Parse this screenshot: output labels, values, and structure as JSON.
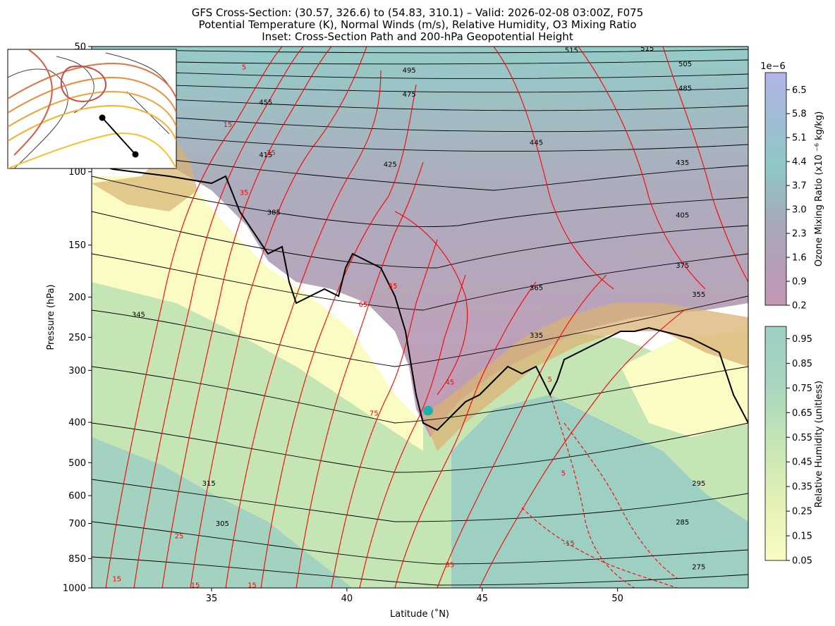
{
  "title_lines": [
    "GFS Cross-Section: (30.57, 326.6) to (54.83, 310.1) – Valid: 2026-02-08 03:00Z, F075",
    "Potential Temperature (K), Normal Winds (m/s), Relative Humidity, O3 Mixing Ratio",
    "Inset: Cross-Section Path and 200-hPa Geopotential Height"
  ],
  "chart_data": {
    "type": "contour-cross-section",
    "xlabel": "Latitude (˚N)",
    "ylabel": "Pressure (hPa)",
    "xlim": [
      30.57,
      54.83
    ],
    "ylim": [
      1000,
      50
    ],
    "y_scale": "log",
    "x_ticks": [
      35,
      40,
      45,
      50
    ],
    "y_ticks": [
      1000,
      850,
      700,
      600,
      500,
      400,
      300,
      250,
      200,
      150,
      100,
      50
    ],
    "theta_contour_labels": [
      {
        "text": "515",
        "lat": 48.3,
        "p": 51
      },
      {
        "text": "515",
        "lat": 51.1,
        "p": 50.5
      },
      {
        "text": "505",
        "lat": 52.5,
        "p": 55
      },
      {
        "text": "495",
        "lat": 42.3,
        "p": 57
      },
      {
        "text": "485",
        "lat": 52.5,
        "p": 63
      },
      {
        "text": "475",
        "lat": 42.3,
        "p": 65
      },
      {
        "text": "455",
        "lat": 37.0,
        "p": 68
      },
      {
        "text": "445",
        "lat": 47.0,
        "p": 85
      },
      {
        "text": "435",
        "lat": 52.4,
        "p": 95
      },
      {
        "text": "425",
        "lat": 41.6,
        "p": 96
      },
      {
        "text": "415",
        "lat": 37.0,
        "p": 91
      },
      {
        "text": "405",
        "lat": 52.4,
        "p": 127
      },
      {
        "text": "385",
        "lat": 37.3,
        "p": 125
      },
      {
        "text": "375",
        "lat": 52.4,
        "p": 168
      },
      {
        "text": "365",
        "lat": 47.0,
        "p": 190
      },
      {
        "text": "355",
        "lat": 53.0,
        "p": 197
      },
      {
        "text": "345",
        "lat": 32.3,
        "p": 220
      },
      {
        "text": "335",
        "lat": 47.0,
        "p": 247
      },
      {
        "text": "315",
        "lat": 34.9,
        "p": 560
      },
      {
        "text": "305",
        "lat": 35.4,
        "p": 700
      },
      {
        "text": "295",
        "lat": 53.0,
        "p": 560
      },
      {
        "text": "285",
        "lat": 52.4,
        "p": 695
      },
      {
        "text": "275",
        "lat": 53.0,
        "p": 890
      }
    ],
    "wind_contour_labels": [
      {
        "text": "5",
        "lat": 36.2,
        "p": 56
      },
      {
        "text": "15",
        "lat": 35.6,
        "p": 77
      },
      {
        "text": "25",
        "lat": 37.2,
        "p": 90
      },
      {
        "text": "35",
        "lat": 36.2,
        "p": 112
      },
      {
        "text": "55",
        "lat": 41.7,
        "p": 188
      },
      {
        "text": "65",
        "lat": 40.6,
        "p": 208
      },
      {
        "text": "45",
        "lat": 43.8,
        "p": 320
      },
      {
        "text": "75",
        "lat": 41.0,
        "p": 380
      },
      {
        "text": "5",
        "lat": 47.5,
        "p": 315
      },
      {
        "text": "5",
        "lat": 48.0,
        "p": 530
      },
      {
        "text": "-15",
        "lat": 48.2,
        "p": 780
      },
      {
        "text": "25",
        "lat": 33.8,
        "p": 750
      },
      {
        "text": "35",
        "lat": 43.8,
        "p": 880
      },
      {
        "text": "15",
        "lat": 31.5,
        "p": 950
      },
      {
        "text": "15",
        "lat": 34.4,
        "p": 985
      },
      {
        "text": "15",
        "lat": 36.5,
        "p": 985
      }
    ],
    "tropopause_marker": {
      "lat": 43.0,
      "p": 375
    },
    "tropopause_color": "#000000",
    "theta_color": "#000000",
    "wind_color": "#ff0000",
    "colorbars": [
      {
        "label": "Ozone Mixing Ratio (x10 ⁻⁶ kg/kg)",
        "offset_text": "1e−6",
        "ticks": [
          "6.5",
          "5.8",
          "5.1",
          "4.4",
          "3.7",
          "3.0",
          "2.3",
          "1.6",
          "0.9",
          "0.2"
        ],
        "range": [
          0.2,
          7.0
        ],
        "colors": [
          "#c396b4",
          "#a8a8b9",
          "#8ec9c5",
          "#a0bcd6",
          "#b2b4e6"
        ]
      },
      {
        "label": "Relative Humidity (unitless)",
        "ticks": [
          "0.95",
          "0.85",
          "0.75",
          "0.65",
          "0.55",
          "0.45",
          "0.35",
          "0.25",
          "0.15",
          "0.05"
        ],
        "range": [
          0.05,
          1.0
        ],
        "colors": [
          "#fbfcc3",
          "#e3f1b6",
          "#c6e5b4",
          "#a9d6bf",
          "#9dcfc2"
        ]
      }
    ],
    "inset": {
      "path_start": {
        "lat": 30.57,
        "lon": 326.6
      },
      "path_end": {
        "lat": 54.83,
        "lon": 310.1
      }
    }
  }
}
